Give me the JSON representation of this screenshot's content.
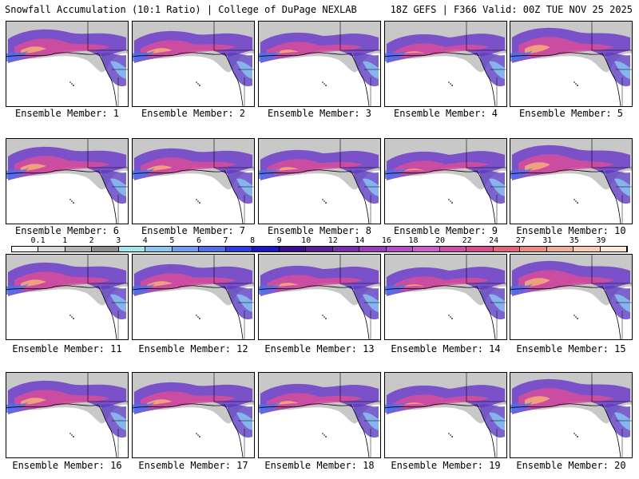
{
  "header": {
    "title_left": "Snowfall Accumulation (10:1 Ratio) | College of DuPage NEXLAB",
    "title_right": "18Z GEFS | F366 Valid: 00Z TUE NOV 25 2025"
  },
  "panels": [
    {
      "label": "Ensemble Member: 1"
    },
    {
      "label": "Ensemble Member: 2"
    },
    {
      "label": "Ensemble Member: 3"
    },
    {
      "label": "Ensemble Member: 4"
    },
    {
      "label": "Ensemble Member: 5"
    },
    {
      "label": "Ensemble Member: 6"
    },
    {
      "label": "Ensemble Member: 7"
    },
    {
      "label": "Ensemble Member: 8"
    },
    {
      "label": "Ensemble Member: 9"
    },
    {
      "label": "Ensemble Member: 10"
    },
    {
      "label": "Ensemble Member: 11"
    },
    {
      "label": "Ensemble Member: 12"
    },
    {
      "label": "Ensemble Member: 13"
    },
    {
      "label": "Ensemble Member: 14"
    },
    {
      "label": "Ensemble Member: 15"
    },
    {
      "label": "Ensemble Member: 16"
    },
    {
      "label": "Ensemble Member: 17"
    },
    {
      "label": "Ensemble Member: 18"
    },
    {
      "label": "Ensemble Member: 19"
    },
    {
      "label": "Ensemble Member: 20"
    }
  ],
  "legend": {
    "ticks": [
      "0.1",
      "1",
      "2",
      "3",
      "4",
      "5",
      "6",
      "7",
      "8",
      "9",
      "10",
      "12",
      "14",
      "16",
      "18",
      "20",
      "22",
      "24",
      "27",
      "31",
      "35",
      "39"
    ],
    "colors": [
      "#f4f4f4",
      "#d8d8d8",
      "#b4b4b4",
      "#8c8c8c",
      "#9ee8ee",
      "#88c8f4",
      "#6aa0f4",
      "#4c70ee",
      "#2c3ce8",
      "#1c14c8",
      "#3c0c98",
      "#5c1c9c",
      "#7c2cac",
      "#9c3cbc",
      "#b44cc8",
      "#cc5cd4",
      "#d44cac",
      "#dc4c8c",
      "#e4647c",
      "#ec8c7c",
      "#f4ac94",
      "#f8ccb0",
      "#fce8d8"
    ]
  }
}
